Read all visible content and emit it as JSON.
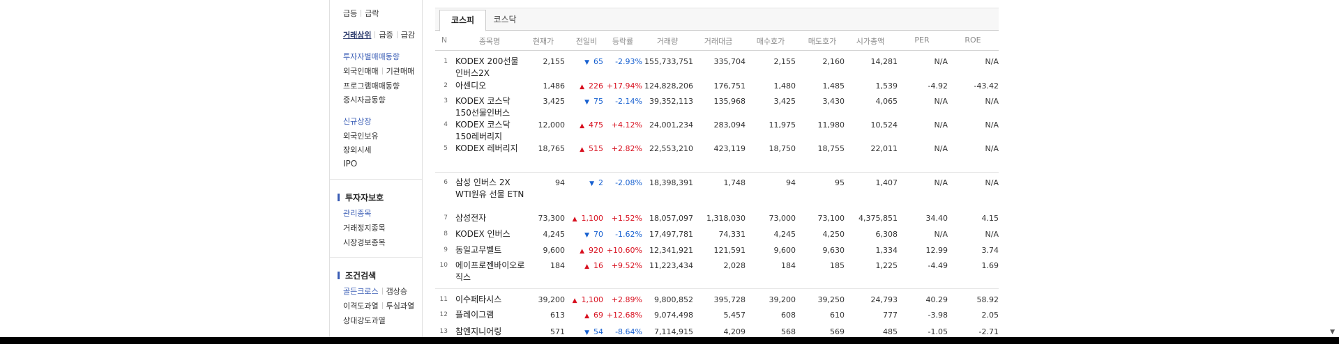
{
  "sidebar": {
    "surge_row": [
      "급등",
      "급락"
    ],
    "volume_row": [
      "거래상위",
      "급증",
      "급감"
    ],
    "investor_head": "투자자별매매동향",
    "investor_row": [
      "외국인매매",
      "기관매매"
    ],
    "program": "프로그램매매동향",
    "deposit": "증시자금동향",
    "new_listing": "신규상장",
    "foreign_holding": "외국인보유",
    "offhours": "장외시세",
    "ipo": "IPO",
    "protect_head": "투자자보호",
    "protect_items": [
      "관리종목",
      "거래정지종목",
      "시장경보종목"
    ],
    "cond_head": "조건검색",
    "cond_row1": [
      "골든크로스",
      "갭상승"
    ],
    "cond_row2": [
      "이격도과열",
      "투심과열"
    ],
    "cond_row3": "상대강도과열"
  },
  "tabs": [
    "코스피",
    "코스닥"
  ],
  "columns": [
    "N",
    "종목명",
    "현재가",
    "전일비",
    "등락률",
    "거래량",
    "거래대금",
    "매수호가",
    "매도호가",
    "시가총액",
    "PER",
    "ROE"
  ],
  "rows": [
    {
      "n": "1",
      "name": "KODEX 200선물인버스2X",
      "price": "2,155",
      "dir": "down",
      "chg": "65",
      "rate": "-2.93%",
      "vol": "155,733,751",
      "amt": "335,704",
      "bid": "2,155",
      "ask": "2,160",
      "cap": "14,281",
      "per": "N/A",
      "roe": "N/A"
    },
    {
      "n": "2",
      "name": "아센디오",
      "price": "1,486",
      "dir": "up",
      "chg": "226",
      "rate": "+17.94%",
      "vol": "124,828,206",
      "amt": "176,751",
      "bid": "1,480",
      "ask": "1,485",
      "cap": "1,539",
      "per": "-4.92",
      "roe": "-43.42"
    },
    {
      "n": "3",
      "name": "KODEX 코스닥150선물인버스",
      "price": "3,425",
      "dir": "down",
      "chg": "75",
      "rate": "-2.14%",
      "vol": "39,352,113",
      "amt": "135,968",
      "bid": "3,425",
      "ask": "3,430",
      "cap": "4,065",
      "per": "N/A",
      "roe": "N/A"
    },
    {
      "n": "4",
      "name": "KODEX 코스닥150레버리지",
      "price": "12,000",
      "dir": "up",
      "chg": "475",
      "rate": "+4.12%",
      "vol": "24,001,234",
      "amt": "283,094",
      "bid": "11,975",
      "ask": "11,980",
      "cap": "10,524",
      "per": "N/A",
      "roe": "N/A"
    },
    {
      "n": "5",
      "name": "KODEX 레버리지",
      "price": "18,765",
      "dir": "up",
      "chg": "515",
      "rate": "+2.82%",
      "vol": "22,553,210",
      "amt": "423,119",
      "bid": "18,750",
      "ask": "18,755",
      "cap": "22,011",
      "per": "N/A",
      "roe": "N/A"
    },
    {
      "n": "6",
      "name": "삼성 인버스 2X WTI원유 선물 ETN",
      "price": "94",
      "dir": "down",
      "chg": "2",
      "rate": "-2.08%",
      "vol": "18,398,391",
      "amt": "1,748",
      "bid": "94",
      "ask": "95",
      "cap": "1,407",
      "per": "N/A",
      "roe": "N/A"
    },
    {
      "n": "7",
      "name": "삼성전자",
      "price": "73,300",
      "dir": "up",
      "chg": "1,100",
      "rate": "+1.52%",
      "vol": "18,057,097",
      "amt": "1,318,030",
      "bid": "73,000",
      "ask": "73,100",
      "cap": "4,375,851",
      "per": "34.40",
      "roe": "4.15"
    },
    {
      "n": "8",
      "name": "KODEX 인버스",
      "price": "4,245",
      "dir": "down",
      "chg": "70",
      "rate": "-1.62%",
      "vol": "17,497,781",
      "amt": "74,331",
      "bid": "4,245",
      "ask": "4,250",
      "cap": "6,308",
      "per": "N/A",
      "roe": "N/A"
    },
    {
      "n": "9",
      "name": "동일고무벨트",
      "price": "9,600",
      "dir": "up",
      "chg": "920",
      "rate": "+10.60%",
      "vol": "12,341,921",
      "amt": "121,591",
      "bid": "9,600",
      "ask": "9,630",
      "cap": "1,334",
      "per": "12.99",
      "roe": "3.74"
    },
    {
      "n": "10",
      "name": "에이프로젠바이오로직스",
      "price": "184",
      "dir": "up",
      "chg": "16",
      "rate": "+9.52%",
      "vol": "11,223,434",
      "amt": "2,028",
      "bid": "184",
      "ask": "185",
      "cap": "1,225",
      "per": "-4.49",
      "roe": "1.69"
    },
    {
      "n": "11",
      "name": "이수페타시스",
      "price": "39,200",
      "dir": "up",
      "chg": "1,100",
      "rate": "+2.89%",
      "vol": "9,800,852",
      "amt": "395,728",
      "bid": "39,200",
      "ask": "39,250",
      "cap": "24,793",
      "per": "40.29",
      "roe": "58.92"
    },
    {
      "n": "12",
      "name": "플레이그램",
      "price": "613",
      "dir": "up",
      "chg": "69",
      "rate": "+12.68%",
      "vol": "9,074,498",
      "amt": "5,457",
      "bid": "608",
      "ask": "610",
      "cap": "777",
      "per": "-3.98",
      "roe": "2.05"
    },
    {
      "n": "13",
      "name": "참엔지니어링",
      "price": "571",
      "dir": "down",
      "chg": "54",
      "rate": "-8.64%",
      "vol": "7,114,915",
      "amt": "4,209",
      "bid": "568",
      "ask": "569",
      "cap": "485",
      "per": "-1.05",
      "roe": "-2.71"
    }
  ],
  "colors": {
    "up": "#d8101f",
    "down": "#1760d0",
    "sidebar_blue": "#3a5db5"
  },
  "icons": {
    "up_arrow": "▲",
    "down_arrow": "▼",
    "scroll_down": "▼"
  }
}
